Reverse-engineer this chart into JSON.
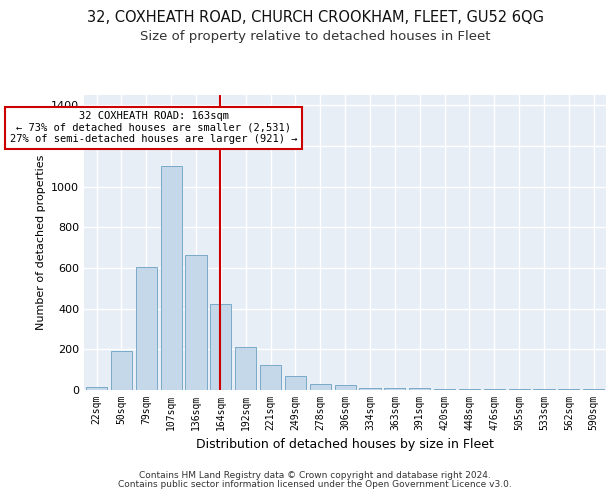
{
  "title1": "32, COXHEATH ROAD, CHURCH CROOKHAM, FLEET, GU52 6QG",
  "title2": "Size of property relative to detached houses in Fleet",
  "xlabel": "Distribution of detached houses by size in Fleet",
  "ylabel": "Number of detached properties",
  "bin_labels": [
    "22sqm",
    "50sqm",
    "79sqm",
    "107sqm",
    "136sqm",
    "164sqm",
    "192sqm",
    "221sqm",
    "249sqm",
    "278sqm",
    "306sqm",
    "334sqm",
    "363sqm",
    "391sqm",
    "420sqm",
    "448sqm",
    "476sqm",
    "505sqm",
    "533sqm",
    "562sqm",
    "590sqm"
  ],
  "bar_heights": [
    15,
    190,
    605,
    1100,
    665,
    425,
    210,
    125,
    70,
    30,
    25,
    10,
    8,
    8,
    5,
    5,
    3,
    3,
    3,
    3,
    3
  ],
  "bar_color": "#c5d8ea",
  "bar_edge_color": "#7aaac8",
  "vline_x": 4.97,
  "annotation_text": "32 COXHEATH ROAD: 163sqm\n← 73% of detached houses are smaller (2,531)\n27% of semi-detached houses are larger (921) →",
  "annotation_box_color": "#ffffff",
  "annotation_box_edge": "#cc0000",
  "vline_color": "#cc0000",
  "footer_line1": "Contains HM Land Registry data © Crown copyright and database right 2024.",
  "footer_line2": "Contains public sector information licensed under the Open Government Licence v3.0.",
  "ylim_max": 1450,
  "yticks": [
    0,
    200,
    400,
    600,
    800,
    1000,
    1200,
    1400
  ],
  "background_color": "#e8eef6",
  "grid_color": "#ffffff",
  "title1_fontsize": 10.5,
  "title2_fontsize": 9.5,
  "n_bins": 21
}
